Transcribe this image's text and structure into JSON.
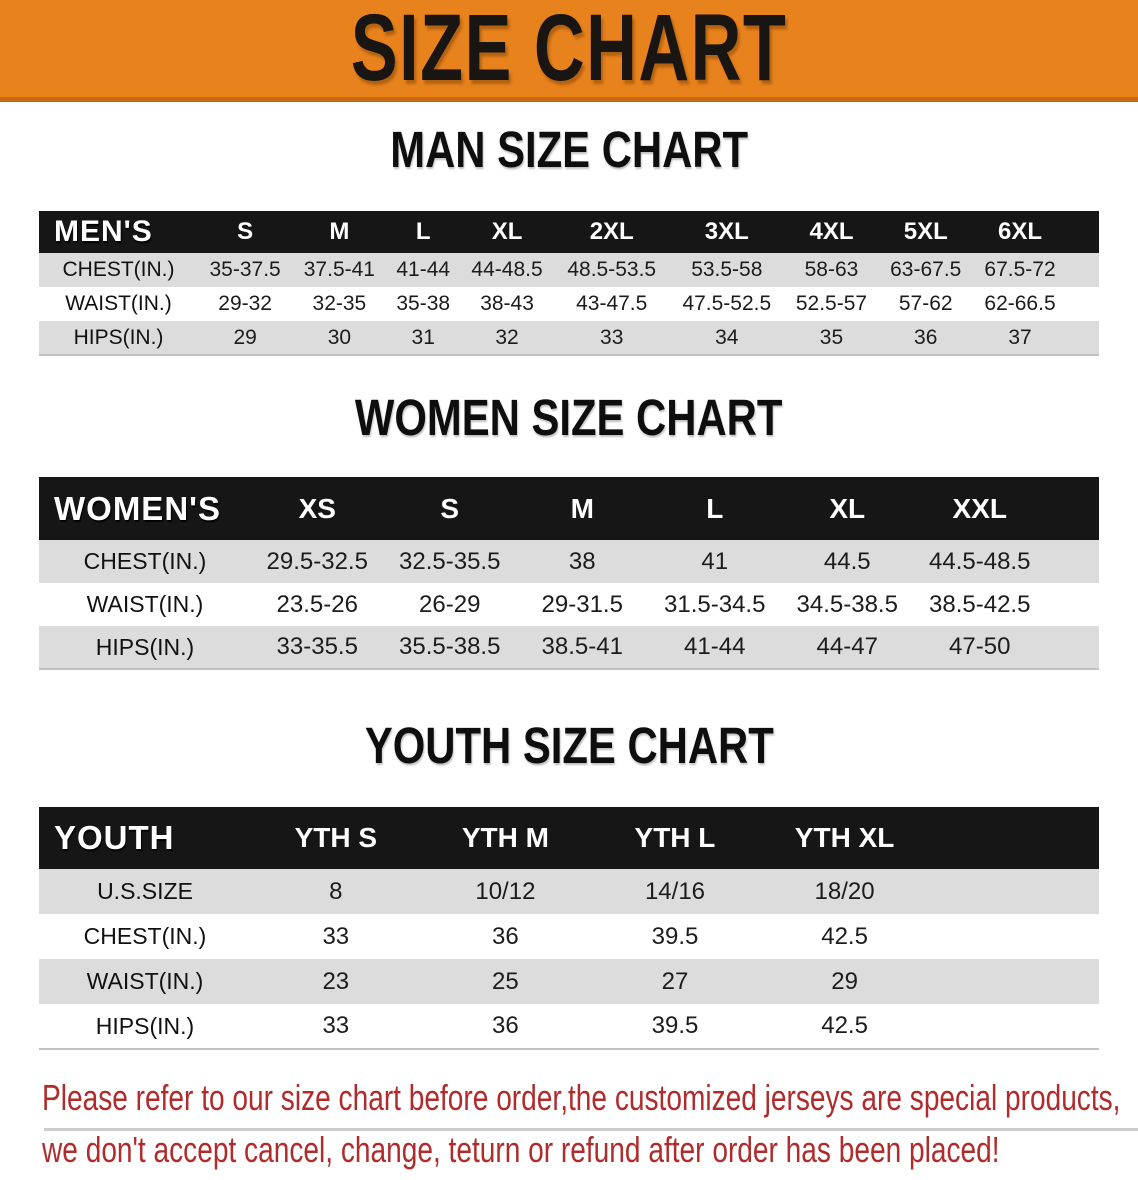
{
  "banner": {
    "title": "SIZE CHART"
  },
  "colors": {
    "banner_bg": "#e8821c",
    "banner_edge": "#c8690e",
    "table_header_bg": "#161616",
    "row_alt_gray": "#dcdcdc",
    "footer_red": "#b02c2c"
  },
  "sections": [
    {
      "heading": "MAN SIZE CHART",
      "table": {
        "corner_label": "MEN'S",
        "columns": [
          "S",
          "M",
          "L",
          "XL",
          "2XL",
          "3XL",
          "4XL",
          "5XL",
          "6XL"
        ],
        "rows": [
          {
            "label": "CHEST(IN.)",
            "values": [
              "35-37.5",
              "37.5-41",
              "41-44",
              "44-48.5",
              "48.5-53.5",
              "53.5-58",
              "58-63",
              "63-67.5",
              "67.5-72"
            ]
          },
          {
            "label": "WAIST(IN.)",
            "values": [
              "29-32",
              "32-35",
              "35-38",
              "38-43",
              "43-47.5",
              "47.5-52.5",
              "52.5-57",
              "57-62",
              "62-66.5"
            ]
          },
          {
            "label": "HIPS(IN.)",
            "values": [
              "29",
              "30",
              "31",
              "32",
              "33",
              "34",
              "35",
              "36",
              "37"
            ]
          }
        ]
      }
    },
    {
      "heading": "WOMEN SIZE CHART",
      "table": {
        "corner_label": "WOMEN'S",
        "columns": [
          "XS",
          "S",
          "M",
          "L",
          "XL",
          "XXL"
        ],
        "rows": [
          {
            "label": "CHEST(IN.)",
            "values": [
              "29.5-32.5",
              "32.5-35.5",
              "38",
              "41",
              "44.5",
              "44.5-48.5"
            ]
          },
          {
            "label": "WAIST(IN.)",
            "values": [
              "23.5-26",
              "26-29",
              "29-31.5",
              "31.5-34.5",
              "34.5-38.5",
              "38.5-42.5"
            ]
          },
          {
            "label": "HIPS(IN.)",
            "values": [
              "33-35.5",
              "35.5-38.5",
              "38.5-41",
              "41-44",
              "44-47",
              "47-50"
            ]
          }
        ]
      }
    },
    {
      "heading": "YOUTH SIZE CHART",
      "table": {
        "corner_label": "YOUTH",
        "columns": [
          "YTH S",
          "YTH M",
          "YTH L",
          "YTH XL"
        ],
        "rows": [
          {
            "label": "U.S.SIZE",
            "values": [
              "8",
              "10/12",
              "14/16",
              "18/20"
            ]
          },
          {
            "label": "CHEST(IN.)",
            "values": [
              "33",
              "36",
              "39.5",
              "42.5"
            ]
          },
          {
            "label": "WAIST(IN.)",
            "values": [
              "23",
              "25",
              "27",
              "29"
            ]
          },
          {
            "label": "HIPS(IN.)",
            "values": [
              "33",
              "36",
              "39.5",
              "42.5"
            ]
          }
        ]
      }
    }
  ],
  "footer": {
    "line1": "Please refer to our size chart before order,the customized jerseys are special products,",
    "line2": "we don't accept cancel, change, teturn or refund after order has been placed!"
  }
}
